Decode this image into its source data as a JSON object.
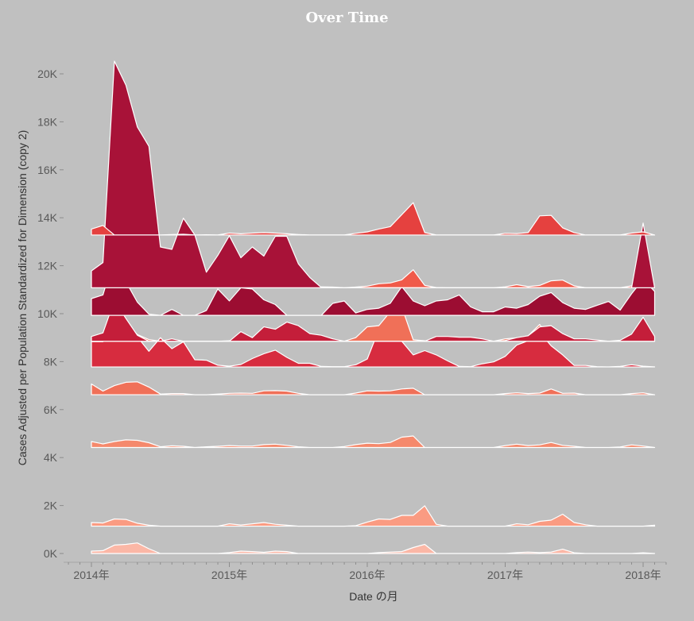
{
  "chart_data": {
    "type": "area",
    "title": "Over Time",
    "xlabel": "Date の月",
    "ylabel": "Cases Adjusted per Population Standardized for Dimension (copy 2)",
    "ylim": [
      -300,
      21300
    ],
    "y_ticks": [
      {
        "label": "0K",
        "value": 0
      },
      {
        "label": "2K",
        "value": 2000
      },
      {
        "label": "4K",
        "value": 4000
      },
      {
        "label": "6K",
        "value": 6000
      },
      {
        "label": "8K",
        "value": 8000
      },
      {
        "label": "10K",
        "value": 10000
      },
      {
        "label": "12K",
        "value": 12000
      },
      {
        "label": "14K",
        "value": 14000
      },
      {
        "label": "16K",
        "value": 16000
      },
      {
        "label": "18K",
        "value": 18000
      },
      {
        "label": "20K",
        "value": 20000
      }
    ],
    "x_ticks": [
      {
        "label": "2014年",
        "month_index": 0
      },
      {
        "label": "2015年",
        "month_index": 12
      },
      {
        "label": "2016年",
        "month_index": 24
      },
      {
        "label": "2017年",
        "month_index": 36
      },
      {
        "label": "2018年",
        "month_index": 48
      }
    ],
    "x_start": "2014-01",
    "x_end": "2018-02",
    "series": [
      {
        "baseline": 0,
        "color": "#fbb7a6",
        "values": [
          100,
          120,
          350,
          380,
          440,
          200,
          0,
          0,
          0,
          0,
          0,
          0,
          40,
          100,
          80,
          50,
          100,
          80,
          0,
          0,
          0,
          0,
          0,
          0,
          0,
          40,
          60,
          80,
          250,
          380,
          0,
          0,
          0,
          0,
          0,
          0,
          0,
          40,
          60,
          40,
          60,
          180,
          30,
          0,
          0,
          0,
          0,
          0,
          30,
          0
        ]
      },
      {
        "baseline": 1140,
        "color": "#fa9b82",
        "values": [
          150,
          130,
          300,
          280,
          120,
          40,
          0,
          0,
          0,
          0,
          0,
          0,
          100,
          50,
          100,
          150,
          80,
          40,
          0,
          0,
          0,
          0,
          0,
          20,
          170,
          300,
          280,
          450,
          450,
          850,
          80,
          0,
          0,
          0,
          0,
          0,
          0,
          100,
          60,
          200,
          250,
          500,
          150,
          60,
          0,
          0,
          0,
          0,
          0,
          40
        ]
      },
      {
        "baseline": 4420,
        "color": "#f5896c",
        "values": [
          250,
          150,
          250,
          320,
          300,
          200,
          30,
          70,
          50,
          0,
          30,
          50,
          80,
          60,
          60,
          120,
          140,
          90,
          30,
          0,
          0,
          0,
          40,
          120,
          180,
          160,
          210,
          430,
          480,
          0,
          0,
          0,
          0,
          0,
          0,
          0,
          80,
          140,
          80,
          110,
          210,
          90,
          50,
          0,
          0,
          0,
          20,
          110,
          60,
          0
        ]
      },
      {
        "baseline": 6620,
        "color": "#f07058",
        "values": [
          450,
          150,
          380,
          520,
          540,
          320,
          30,
          50,
          50,
          0,
          0,
          30,
          60,
          70,
          60,
          160,
          170,
          150,
          60,
          0,
          0,
          0,
          0,
          70,
          160,
          150,
          160,
          240,
          270,
          0,
          0,
          0,
          0,
          0,
          0,
          0,
          50,
          80,
          50,
          70,
          240,
          60,
          70,
          0,
          0,
          0,
          0,
          50,
          80,
          0
        ]
      },
      {
        "baseline": 7780,
        "color": "#d72c3f",
        "values": [
          1050,
          1050,
          1800,
          1400,
          1250,
          650,
          1220,
          760,
          1050,
          300,
          280,
          70,
          30,
          100,
          350,
          550,
          700,
          400,
          150,
          150,
          20,
          10,
          10,
          90,
          330,
          1550,
          1750,
          1070,
          500,
          680,
          500,
          250,
          20,
          10,
          130,
          210,
          440,
          910,
          1090,
          1450,
          880,
          500,
          60,
          60,
          10,
          0,
          20,
          90,
          30,
          0
        ]
      },
      {
        "baseline": 8850,
        "color": "#f07058",
        "values": [
          60,
          200,
          750,
          770,
          280,
          70,
          0,
          0,
          0,
          0,
          0,
          0,
          20,
          50,
          170,
          210,
          140,
          120,
          0,
          0,
          0,
          0,
          0,
          150,
          600,
          650,
          1230,
          1430,
          60,
          20,
          0,
          10,
          0,
          0,
          0,
          0,
          100,
          140,
          230,
          700,
          20,
          10,
          0,
          10,
          0,
          0,
          0,
          0,
          30,
          0
        ]
      },
      {
        "baseline": 8850,
        "color": "#c41e3a",
        "values": [
          200,
          350,
          1700,
          950,
          250,
          0,
          0,
          100,
          0,
          0,
          0,
          0,
          0,
          400,
          150,
          600,
          500,
          800,
          650,
          320,
          250,
          100,
          0,
          0,
          0,
          0,
          0,
          0,
          0,
          0,
          200,
          200,
          170,
          170,
          100,
          0,
          30,
          150,
          230,
          600,
          650,
          320,
          100,
          100,
          50,
          0,
          40,
          300,
          1000,
          200
        ]
      },
      {
        "baseline": 9930,
        "color": "#9c0d32",
        "values": [
          700,
          850,
          2450,
          1400,
          550,
          50,
          0,
          250,
          0,
          0,
          200,
          1100,
          600,
          1150,
          1100,
          650,
          450,
          0,
          0,
          0,
          0,
          500,
          600,
          100,
          250,
          300,
          500,
          1200,
          600,
          400,
          600,
          650,
          850,
          350,
          150,
          150,
          350,
          300,
          450,
          800,
          950,
          530,
          300,
          250,
          420,
          580,
          220,
          900,
          1500,
          1000
        ]
      },
      {
        "baseline": 11080,
        "color": "#f05a4a",
        "values": [
          700,
          1050,
          3650,
          3800,
          2300,
          1050,
          150,
          30,
          80,
          130,
          80,
          100,
          170,
          310,
          260,
          300,
          250,
          170,
          100,
          30,
          40,
          30,
          0,
          30,
          70,
          170,
          200,
          330,
          750,
          100,
          10,
          0,
          0,
          0,
          0,
          0,
          40,
          130,
          50,
          100,
          290,
          320,
          80,
          0,
          0,
          0,
          0,
          80,
          130,
          0
        ]
      },
      {
        "baseline": 11080,
        "color": "#a81238",
        "values": [
          700,
          1050,
          9450,
          8450,
          6700,
          5900,
          1700,
          1600,
          2900,
          2200,
          650,
          1350,
          2170,
          1250,
          1700,
          1320,
          2150,
          2150,
          1000,
          430,
          10,
          0,
          0,
          0,
          0,
          0,
          0,
          0,
          0,
          0,
          0,
          0,
          0,
          0,
          0,
          0,
          0,
          0,
          0,
          0,
          0,
          0,
          0,
          0,
          0,
          0,
          0,
          0,
          2700,
          0
        ]
      },
      {
        "baseline": 13280,
        "color": "#e5413f",
        "values": [
          250,
          400,
          0,
          0,
          0,
          0,
          0,
          20,
          30,
          0,
          10,
          0,
          80,
          50,
          80,
          100,
          80,
          50,
          20,
          0,
          0,
          0,
          0,
          70,
          130,
          250,
          350,
          850,
          1350,
          100,
          0,
          0,
          0,
          0,
          0,
          0,
          70,
          60,
          100,
          800,
          820,
          300,
          100,
          0,
          0,
          0,
          0,
          80,
          130,
          0
        ]
      }
    ]
  }
}
